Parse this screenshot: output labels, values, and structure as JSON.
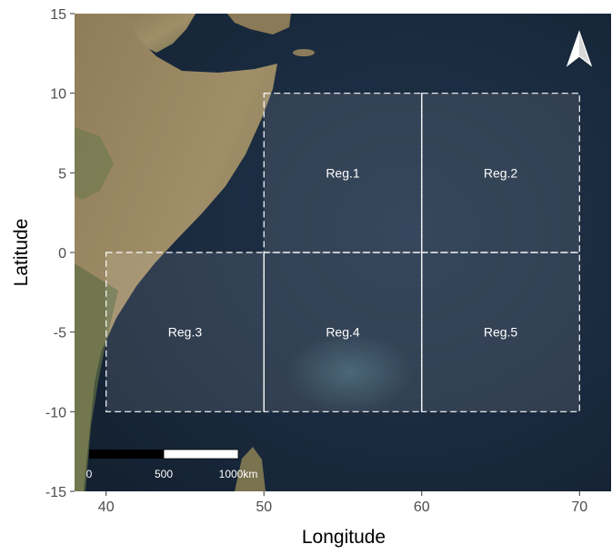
{
  "map": {
    "x_axis": {
      "title": "Longitude",
      "ticks": [
        40,
        50,
        60,
        70
      ],
      "tick_labels": [
        "40",
        "50",
        "60",
        "70"
      ],
      "range": [
        38,
        72
      ]
    },
    "y_axis": {
      "title": "Latitude",
      "ticks": [
        15,
        10,
        5,
        0,
        -5,
        -10,
        -15
      ],
      "tick_labels": [
        "15",
        "10",
        "5",
        "0",
        "-5",
        "-10",
        "-15"
      ],
      "range": [
        -15,
        15
      ]
    },
    "regions": [
      {
        "name": "Reg.1",
        "lon": [
          50,
          60
        ],
        "lat": [
          0,
          10
        ]
      },
      {
        "name": "Reg.2",
        "lon": [
          60,
          70
        ],
        "lat": [
          0,
          10
        ]
      },
      {
        "name": "Reg.3",
        "lon": [
          40,
          50
        ],
        "lat": [
          -10,
          0
        ]
      },
      {
        "name": "Reg.4",
        "lon": [
          50,
          60
        ],
        "lat": [
          -10,
          0
        ]
      },
      {
        "name": "Reg.5",
        "lon": [
          60,
          70
        ],
        "lat": [
          -10,
          0
        ]
      }
    ],
    "scale_bar": {
      "labels": [
        "0",
        "500",
        "1000km"
      ]
    },
    "north_arrow": {
      "icon": "north-arrow-icon"
    },
    "colors": {
      "ocean": "#1b2a3d",
      "land": "#9a8a66",
      "region_fill": "#ffffff",
      "region_outline": "#ffffff"
    }
  }
}
